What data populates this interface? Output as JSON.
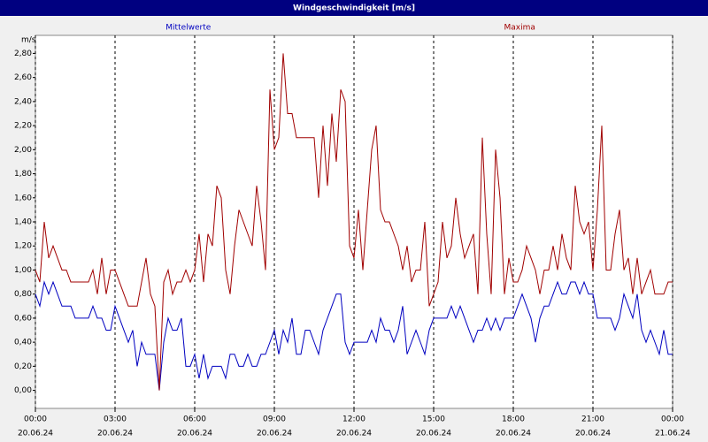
{
  "chart_data": {
    "type": "line",
    "title": "Windgeschwindigkeit [m/s]",
    "y_unit": "m/s",
    "x": [
      0,
      10,
      20,
      30,
      40,
      50,
      60,
      70,
      80,
      90,
      100,
      110,
      120,
      130,
      140,
      150,
      160,
      170,
      180,
      190,
      200,
      210,
      220,
      230,
      240,
      250,
      260,
      270,
      280,
      290,
      300,
      310,
      320,
      330,
      340,
      350,
      360,
      370,
      380,
      390,
      400,
      410,
      420,
      430,
      440,
      450,
      460,
      470,
      480,
      490,
      500,
      510,
      520,
      530,
      540,
      550,
      560,
      570,
      580,
      590,
      600,
      610,
      620,
      630,
      640,
      650,
      660,
      670,
      680,
      690,
      700,
      710,
      720,
      730,
      740,
      750,
      760,
      770,
      780,
      790,
      800,
      810,
      820,
      830,
      840,
      850,
      860,
      870,
      880,
      890,
      900,
      910,
      920,
      930,
      940,
      950,
      960,
      970,
      980,
      990,
      1000,
      1010,
      1020,
      1030,
      1040,
      1050,
      1060,
      1070,
      1080,
      1090,
      1100,
      1110,
      1120,
      1130,
      1140,
      1150,
      1160,
      1170,
      1180,
      1190,
      1200,
      1210,
      1220,
      1230,
      1240,
      1250,
      1260,
      1270,
      1280,
      1290,
      1300,
      1310,
      1320,
      1330,
      1340,
      1350,
      1360,
      1370,
      1380,
      1390,
      1400,
      1410,
      1420,
      1430,
      1440
    ],
    "series": [
      {
        "name": "Mittelwerte",
        "color": "#0000c0",
        "values": [
          0.8,
          0.7,
          0.9,
          0.8,
          0.9,
          0.8,
          0.7,
          0.7,
          0.7,
          0.6,
          0.6,
          0.6,
          0.6,
          0.7,
          0.6,
          0.6,
          0.5,
          0.5,
          0.7,
          0.6,
          0.5,
          0.4,
          0.5,
          0.2,
          0.4,
          0.3,
          0.3,
          0.3,
          0.0,
          0.4,
          0.6,
          0.5,
          0.5,
          0.6,
          0.2,
          0.2,
          0.3,
          0.1,
          0.3,
          0.1,
          0.2,
          0.2,
          0.2,
          0.1,
          0.3,
          0.3,
          0.2,
          0.2,
          0.3,
          0.2,
          0.2,
          0.3,
          0.3,
          0.4,
          0.5,
          0.3,
          0.5,
          0.4,
          0.6,
          0.3,
          0.3,
          0.5,
          0.5,
          0.4,
          0.3,
          0.5,
          0.6,
          0.7,
          0.8,
          0.8,
          0.4,
          0.3,
          0.4,
          0.4,
          0.4,
          0.4,
          0.5,
          0.4,
          0.6,
          0.5,
          0.5,
          0.4,
          0.5,
          0.7,
          0.3,
          0.4,
          0.5,
          0.4,
          0.3,
          0.5,
          0.6,
          0.6,
          0.6,
          0.6,
          0.7,
          0.6,
          0.7,
          0.6,
          0.5,
          0.4,
          0.5,
          0.5,
          0.6,
          0.5,
          0.6,
          0.5,
          0.6,
          0.6,
          0.6,
          0.7,
          0.8,
          0.7,
          0.6,
          0.4,
          0.6,
          0.7,
          0.7,
          0.8,
          0.9,
          0.8,
          0.8,
          0.9,
          0.9,
          0.8,
          0.9,
          0.8,
          0.8,
          0.6,
          0.6,
          0.6,
          0.6,
          0.5,
          0.6,
          0.8,
          0.7,
          0.6,
          0.8,
          0.5,
          0.4,
          0.5,
          0.4,
          0.3,
          0.5,
          0.3,
          0.3
        ]
      },
      {
        "name": "Maxima",
        "color": "#a00000",
        "values": [
          1.0,
          0.9,
          1.4,
          1.1,
          1.2,
          1.1,
          1.0,
          1.0,
          0.9,
          0.9,
          0.9,
          0.9,
          0.9,
          1.0,
          0.8,
          1.1,
          0.8,
          1.0,
          1.0,
          0.9,
          0.8,
          0.7,
          0.7,
          0.7,
          0.9,
          1.1,
          0.8,
          0.7,
          0.0,
          0.9,
          1.0,
          0.8,
          0.9,
          0.9,
          1.0,
          0.9,
          1.0,
          1.3,
          0.9,
          1.3,
          1.2,
          1.7,
          1.6,
          1.0,
          0.8,
          1.2,
          1.5,
          1.4,
          1.3,
          1.2,
          1.7,
          1.4,
          1.0,
          2.5,
          2.0,
          2.1,
          2.8,
          2.3,
          2.3,
          2.1,
          2.1,
          2.1,
          2.1,
          2.1,
          1.6,
          2.2,
          1.7,
          2.3,
          1.9,
          2.5,
          2.4,
          1.2,
          1.1,
          1.5,
          1.0,
          1.5,
          2.0,
          2.2,
          1.5,
          1.4,
          1.4,
          1.3,
          1.2,
          1.0,
          1.2,
          0.9,
          1.0,
          1.0,
          1.4,
          0.7,
          0.8,
          0.9,
          1.4,
          1.1,
          1.2,
          1.6,
          1.3,
          1.1,
          1.2,
          1.3,
          0.8,
          2.1,
          1.3,
          0.8,
          2.0,
          1.6,
          0.8,
          1.1,
          0.9,
          0.9,
          1.0,
          1.2,
          1.1,
          1.0,
          0.8,
          1.0,
          1.0,
          1.2,
          1.0,
          1.3,
          1.1,
          1.0,
          1.7,
          1.4,
          1.3,
          1.4,
          1.0,
          1.5,
          2.2,
          1.0,
          1.0,
          1.3,
          1.5,
          1.0,
          1.1,
          0.8,
          1.1,
          0.8,
          0.9,
          1.0,
          0.8,
          0.8,
          0.8,
          0.9,
          0.9
        ]
      }
    ],
    "xlim": [
      0,
      1440
    ],
    "xticks": [
      {
        "value": 0,
        "label": "00:00"
      },
      {
        "value": 180,
        "label": "03:00"
      },
      {
        "value": 360,
        "label": "06:00"
      },
      {
        "value": 540,
        "label": "09:00"
      },
      {
        "value": 720,
        "label": "12:00"
      },
      {
        "value": 900,
        "label": "15:00"
      },
      {
        "value": 1080,
        "label": "18:00"
      },
      {
        "value": 1260,
        "label": "21:00"
      },
      {
        "value": 1440,
        "label": "00:00"
      }
    ],
    "xtick_dates": [
      "20.06.24",
      "20.06.24",
      "20.06.24",
      "20.06.24",
      "20.06.24",
      "20.06.24",
      "20.06.24",
      "20.06.24",
      "21.06.24"
    ],
    "ylim": [
      -0.15,
      2.95
    ],
    "yticks": [
      {
        "value": 0,
        "label": "0,00"
      },
      {
        "value": 0.2,
        "label": "0,20"
      },
      {
        "value": 0.4,
        "label": "0,40"
      },
      {
        "value": 0.6,
        "label": "0,60"
      },
      {
        "value": 0.8,
        "label": "0,80"
      },
      {
        "value": 1.0,
        "label": "1,00"
      },
      {
        "value": 1.2,
        "label": "1,20"
      },
      {
        "value": 1.4,
        "label": "1,40"
      },
      {
        "value": 1.6,
        "label": "1,60"
      },
      {
        "value": 1.8,
        "label": "1,80"
      },
      {
        "value": 2.0,
        "label": "2,00"
      },
      {
        "value": 2.2,
        "label": "2,20"
      },
      {
        "value": 2.4,
        "label": "2,40"
      },
      {
        "value": 2.6,
        "label": "2,60"
      },
      {
        "value": 2.8,
        "label": "2,80"
      }
    ],
    "grid": true
  }
}
